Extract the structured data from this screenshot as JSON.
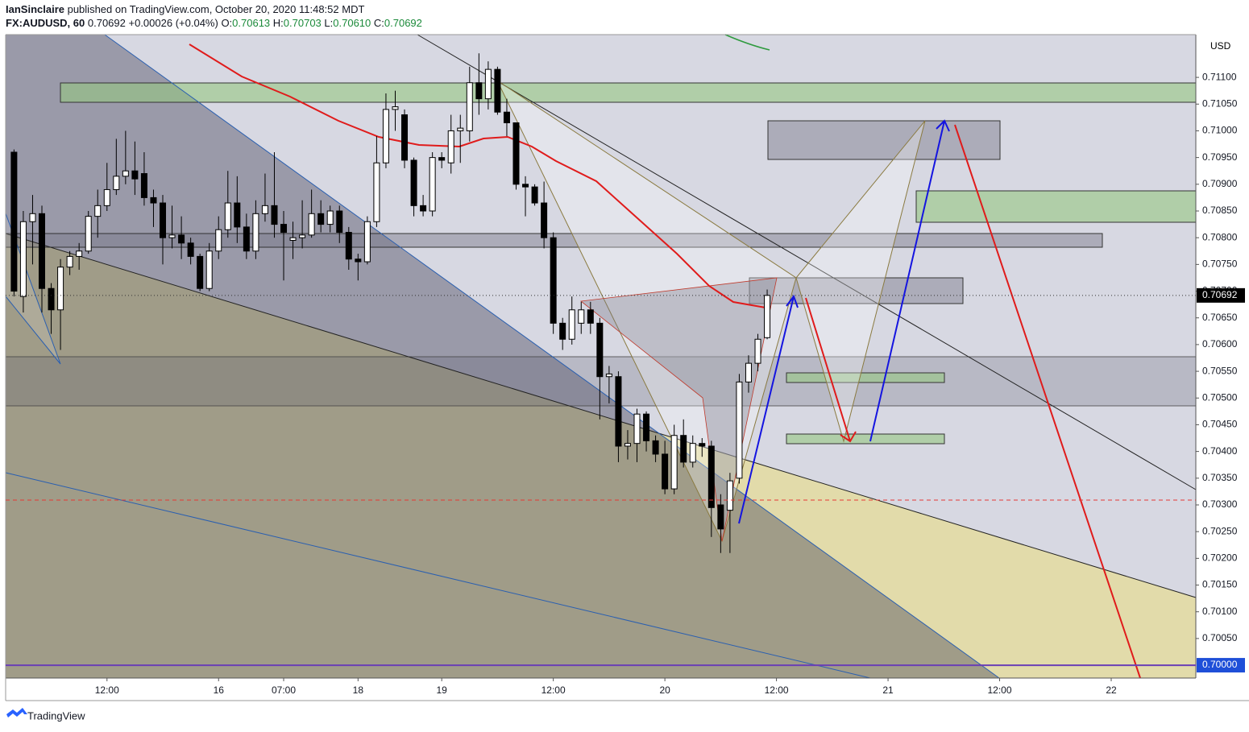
{
  "header": {
    "author": "IanSinclaire",
    "published": " published on TradingView.com, October 20, 2020 11:48:52 MDT",
    "symbol": "FX:AUDUSD, 60",
    "price": "0.70692",
    "change": "+0.00026 (+0.04%)",
    "ohlc": [
      {
        "label": "O:",
        "value": "0.70613"
      },
      {
        "label": "H:",
        "value": "0.70703"
      },
      {
        "label": "L:",
        "value": "0.70610"
      },
      {
        "label": "C:",
        "value": "0.70692"
      }
    ],
    "currency": "USD",
    "brand": "TradingView"
  },
  "chart_data": {
    "type": "candlestick",
    "up_color": "#ffffff",
    "down_color": "#000000",
    "open": [
      0.7096,
      0.7069,
      0.7083,
      0.70845,
      0.70705,
      0.70665,
      0.70745,
      0.70765,
      0.70775,
      0.7084,
      0.7086,
      0.7089,
      0.70915,
      0.70925,
      0.7092,
      0.70875,
      0.70865,
      0.708,
      0.70805,
      0.7079,
      0.70765,
      0.70705,
      0.70775,
      0.70815,
      0.70865,
      0.7082,
      0.70775,
      0.70845,
      0.7086,
      0.70825,
      0.70795,
      0.708,
      0.70805,
      0.70845,
      0.70825,
      0.7085,
      0.7081,
      0.7076,
      0.70755,
      0.7083,
      0.7094,
      0.7104,
      0.7103,
      0.70945,
      0.7086,
      0.7085,
      0.7095,
      0.7094,
      0.71,
      0.71,
      0.7109,
      0.7106,
      0.71115,
      0.71035,
      0.71015,
      0.709,
      0.70895,
      0.70865,
      0.708,
      0.7064,
      0.7061,
      0.7064,
      0.70665,
      0.7064,
      0.7054,
      0.7054,
      0.7041,
      0.70415,
      0.7047,
      0.7042,
      0.70395,
      0.7033,
      0.7043,
      0.7038,
      0.70415,
      0.7041,
      0.703,
      0.7029,
      0.7035,
      0.7053,
      0.70565,
      0.70613
    ],
    "high": [
      0.70965,
      0.7085,
      0.7088,
      0.7086,
      0.70715,
      0.7076,
      0.70775,
      0.7079,
      0.7085,
      0.7089,
      0.7094,
      0.70985,
      0.71,
      0.7098,
      0.7096,
      0.7089,
      0.7088,
      0.7086,
      0.7084,
      0.708,
      0.7077,
      0.7079,
      0.7084,
      0.70925,
      0.70915,
      0.70845,
      0.7087,
      0.7092,
      0.7096,
      0.7085,
      0.7083,
      0.7087,
      0.7089,
      0.7087,
      0.7086,
      0.7086,
      0.7082,
      0.7077,
      0.7084,
      0.7099,
      0.7107,
      0.71075,
      0.7104,
      0.7095,
      0.7088,
      0.7096,
      0.7096,
      0.7103,
      0.7103,
      0.7112,
      0.71145,
      0.7113,
      0.7112,
      0.7106,
      0.71015,
      0.70915,
      0.709,
      0.70905,
      0.7081,
      0.7065,
      0.7069,
      0.7068,
      0.7068,
      0.7065,
      0.7056,
      0.7055,
      0.7044,
      0.7048,
      0.70475,
      0.7043,
      0.7042,
      0.7045,
      0.7046,
      0.7043,
      0.70425,
      0.7042,
      0.7032,
      0.7036,
      0.70545,
      0.7058,
      0.7062,
      0.70703
    ],
    "low": [
      0.7069,
      0.7066,
      0.7075,
      0.7066,
      0.7062,
      0.7059,
      0.7073,
      0.7074,
      0.7077,
      0.708,
      0.7085,
      0.7088,
      0.709,
      0.7088,
      0.7086,
      0.7082,
      0.7075,
      0.7078,
      0.7076,
      0.7075,
      0.707,
      0.707,
      0.7076,
      0.708,
      0.7079,
      0.7076,
      0.7076,
      0.7083,
      0.708,
      0.7072,
      0.7076,
      0.7078,
      0.708,
      0.7081,
      0.7081,
      0.7079,
      0.7074,
      0.7072,
      0.7075,
      0.7082,
      0.7093,
      0.71,
      0.7093,
      0.7084,
      0.7084,
      0.7084,
      0.7093,
      0.7092,
      0.7094,
      0.7098,
      0.7103,
      0.7104,
      0.7103,
      0.7099,
      0.7089,
      0.7084,
      0.7086,
      0.7078,
      0.7062,
      0.7059,
      0.706,
      0.7062,
      0.7062,
      0.7046,
      0.7049,
      0.7038,
      0.70385,
      0.7038,
      0.704,
      0.7038,
      0.7032,
      0.7032,
      0.7037,
      0.7037,
      0.7039,
      0.7024,
      0.7021,
      0.7021,
      0.7034,
      0.7051,
      0.7055,
      0.7061
    ],
    "close": [
      0.707,
      0.7083,
      0.70845,
      0.70705,
      0.70665,
      0.70745,
      0.70765,
      0.70775,
      0.7084,
      0.7086,
      0.7089,
      0.70915,
      0.70925,
      0.7091,
      0.70875,
      0.70865,
      0.708,
      0.70805,
      0.7079,
      0.70765,
      0.70705,
      0.70775,
      0.70815,
      0.70865,
      0.7082,
      0.70775,
      0.70845,
      0.7086,
      0.70825,
      0.7081,
      0.708,
      0.70805,
      0.70845,
      0.70825,
      0.7085,
      0.7081,
      0.7076,
      0.70755,
      0.7083,
      0.7094,
      0.7104,
      0.71045,
      0.70945,
      0.7086,
      0.7085,
      0.7095,
      0.70945,
      0.71,
      0.71005,
      0.7109,
      0.7106,
      0.71115,
      0.71035,
      0.71015,
      0.709,
      0.70895,
      0.70865,
      0.708,
      0.7064,
      0.7061,
      0.70665,
      0.70665,
      0.7064,
      0.7054,
      0.70545,
      0.7041,
      0.70415,
      0.7047,
      0.7042,
      0.70395,
      0.7033,
      0.7043,
      0.7038,
      0.70415,
      0.7041,
      0.70295,
      0.70255,
      0.70345,
      0.7053,
      0.70565,
      0.7061,
      0.70692
    ],
    "xlim": [
      -0.9,
      127.1
    ],
    "ylim": [
      0.69976,
      0.7118
    ],
    "xticks": [
      {
        "value": 10,
        "label": "12:00"
      },
      {
        "value": 22,
        "label": "16"
      },
      {
        "value": 29,
        "label": "07:00"
      },
      {
        "value": 37,
        "label": "18"
      },
      {
        "value": 46,
        "label": "19"
      },
      {
        "value": 58,
        "label": "12:00"
      },
      {
        "value": 70,
        "label": "20"
      },
      {
        "value": 82,
        "label": "12:00"
      },
      {
        "value": 94,
        "label": "21"
      },
      {
        "value": 106,
        "label": "12:00"
      },
      {
        "value": 118,
        "label": "22"
      }
    ],
    "yticks": [
      {
        "value": 0.7005,
        "label": "0.70050"
      },
      {
        "value": 0.701,
        "label": "0.70100"
      },
      {
        "value": 0.7015,
        "label": "0.70150"
      },
      {
        "value": 0.702,
        "label": "0.70200"
      },
      {
        "value": 0.7025,
        "label": "0.70250"
      },
      {
        "value": 0.703,
        "label": "0.70300"
      },
      {
        "value": 0.7035,
        "label": "0.70350"
      },
      {
        "value": 0.704,
        "label": "0.70400"
      },
      {
        "value": 0.7045,
        "label": "0.70450"
      },
      {
        "value": 0.705,
        "label": "0.70500"
      },
      {
        "value": 0.7055,
        "label": "0.70550"
      },
      {
        "value": 0.706,
        "label": "0.70600"
      },
      {
        "value": 0.7065,
        "label": "0.70650"
      },
      {
        "value": 0.707,
        "label": "0.70700"
      },
      {
        "value": 0.7075,
        "label": "0.70750"
      },
      {
        "value": 0.708,
        "label": "0.70800"
      },
      {
        "value": 0.7085,
        "label": "0.70850"
      },
      {
        "value": 0.709,
        "label": "0.70900"
      },
      {
        "value": 0.7095,
        "label": "0.70950"
      },
      {
        "value": 0.71,
        "label": "0.71000"
      },
      {
        "value": 0.7105,
        "label": "0.71050"
      },
      {
        "value": 0.711,
        "label": "0.71100"
      }
    ],
    "last_price": {
      "value": 0.70692,
      "label": "0.70692",
      "color": "#000000"
    },
    "level": {
      "value": 0.7,
      "label": "0.70000",
      "color": "#6a3fb5"
    },
    "dashed_level": {
      "value": 0.70309,
      "color": "#e53935"
    }
  }
}
